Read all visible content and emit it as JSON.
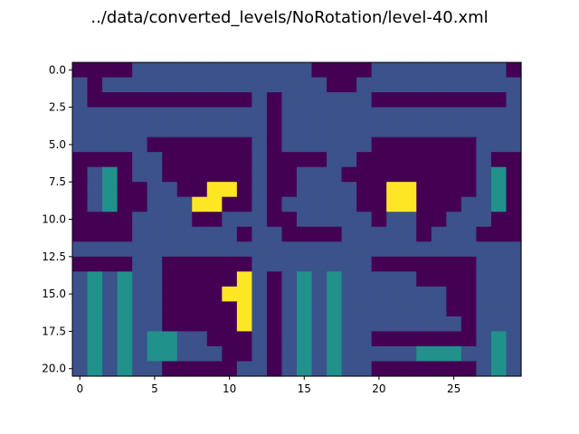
{
  "chart_data": {
    "type": "heatmap",
    "title": "../data/converted_levels/NoRotation/level-40.xml",
    "xlabel": "",
    "ylabel": "",
    "x_ticks": [
      0,
      5,
      10,
      15,
      20,
      25
    ],
    "x_tick_labels": [
      "0",
      "5",
      "10",
      "15",
      "20",
      "25"
    ],
    "y_ticks": [
      0,
      2.5,
      5,
      7.5,
      10,
      12.5,
      15,
      17.5,
      20
    ],
    "y_tick_labels": [
      "0.0",
      "2.5",
      "5.0",
      "7.5",
      "10.0",
      "12.5",
      "15.0",
      "17.5",
      "20.0"
    ],
    "xlim": [
      -0.5,
      29.5
    ],
    "ylim": [
      20.5,
      -0.5
    ],
    "grid": false,
    "colormap": [
      "#440154",
      "#3b528b",
      "#21918c",
      "#fde725"
    ],
    "value_levels": [
      0,
      1,
      2,
      3
    ],
    "grid_values": [
      "000011111111111100001111111110",
      "101111111111111110011111111111",
      "100000000000101111110000000001",
      "111111111111101111111111111111",
      "111111111111101111111111111111",
      "111110000000101111110000000111",
      "000011000000100001100000000100",
      "012011000000100111000000000120",
      "012001100330100111100330000120",
      "012001113300101111100330001120",
      "000011110011100111110110011100",
      "000011111110110000111110111000",
      "111111111111111111111111111111",
      "000011000000111111110000000111",
      "121211000003101212111110000111",
      "121211000033101212111111100111",
      "121211000003101212111111100111",
      "121211000003101212111111110111",
      "121212211000101212110000000121",
      "121212211100101212111112221121",
      "121211000001101212110000000121"
    ]
  }
}
